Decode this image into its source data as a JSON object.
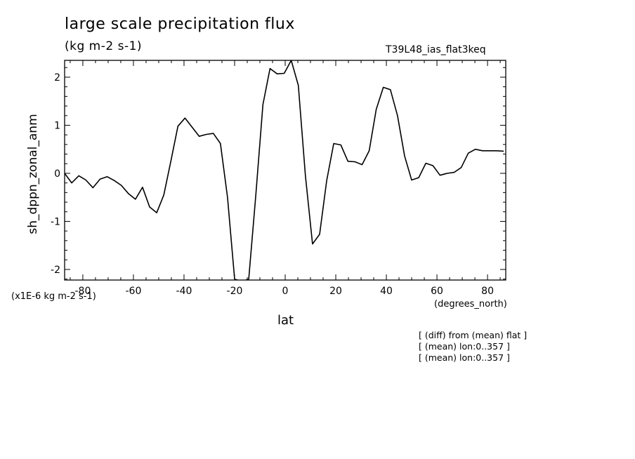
{
  "chart_data": {
    "type": "line",
    "title": "large scale precipitation flux",
    "subtitle": "(kg m-2 s-1)",
    "run_label": "T39L48_ias_flat3keq",
    "xlabel": "lat",
    "x_units": "(degrees_north)",
    "ylabel": "sh_dppn_zonal_anm",
    "y_scale_label": "(x1E-6 kg m-2 s-1)",
    "xlim": [
      -87.2,
      87.2
    ],
    "ylim": [
      -2.22,
      2.35
    ],
    "x_ticks": [
      -80,
      -60,
      -40,
      -20,
      0,
      20,
      40,
      60,
      80
    ],
    "x_tick_labels": [
      "-80",
      "-60",
      "-40",
      "-20",
      "0",
      "20",
      "40",
      "60",
      "80"
    ],
    "y_ticks": [
      -2,
      -1,
      0,
      1,
      2
    ],
    "y_tick_labels": [
      "-2",
      "-1",
      "0",
      "1",
      "2"
    ],
    "grid": false,
    "series": [
      {
        "x": [
          -87.2,
          -84.4,
          -81.6,
          -78.8,
          -76.0,
          -73.2,
          -70.4,
          -67.6,
          -64.8,
          -62.0,
          -59.2,
          -56.4,
          -53.6,
          -50.8,
          -48.0,
          -45.2,
          -42.4,
          -39.6,
          -36.8,
          -34.0,
          -31.2,
          -28.4,
          -25.6,
          -22.8,
          -20.0,
          -17.2,
          -14.4,
          -11.6,
          -8.8,
          -6.0,
          -3.2,
          -0.4,
          2.4,
          5.2,
          8.0,
          10.8,
          13.6,
          16.4,
          19.2,
          22.0,
          24.8,
          27.6,
          30.4,
          33.2,
          36.0,
          38.8,
          41.6,
          44.4,
          47.2,
          50.0,
          52.8,
          55.6,
          58.4,
          61.2,
          64.0,
          66.8,
          69.6,
          72.4,
          75.2,
          78.0,
          80.8,
          83.6,
          86.4
        ],
        "y": [
          0.0,
          -0.2,
          -0.05,
          -0.14,
          -0.3,
          -0.12,
          -0.07,
          -0.15,
          -0.25,
          -0.42,
          -0.54,
          -0.29,
          -0.7,
          -0.82,
          -0.45,
          0.25,
          0.98,
          1.15,
          0.96,
          0.77,
          0.81,
          0.83,
          0.62,
          -0.5,
          -2.2,
          -2.25,
          -2.2,
          -0.45,
          1.43,
          2.18,
          2.07,
          2.08,
          2.35,
          1.83,
          -0.05,
          -1.47,
          -1.27,
          -0.15,
          0.62,
          0.59,
          0.25,
          0.24,
          0.18,
          0.47,
          1.33,
          1.79,
          1.74,
          1.2,
          0.36,
          -0.14,
          -0.09,
          0.21,
          0.16,
          -0.04,
          0.0,
          0.02,
          0.12,
          0.42,
          0.5,
          0.47,
          0.47,
          0.47,
          0.46
        ]
      }
    ]
  },
  "notes": [
    "[ (diff) from (mean) flat ]",
    "[ (mean) lon:0..357 ]",
    "[ (mean) lon:0..357 ]"
  ],
  "colors": {
    "line": "#000000",
    "background": "#ffffff"
  }
}
